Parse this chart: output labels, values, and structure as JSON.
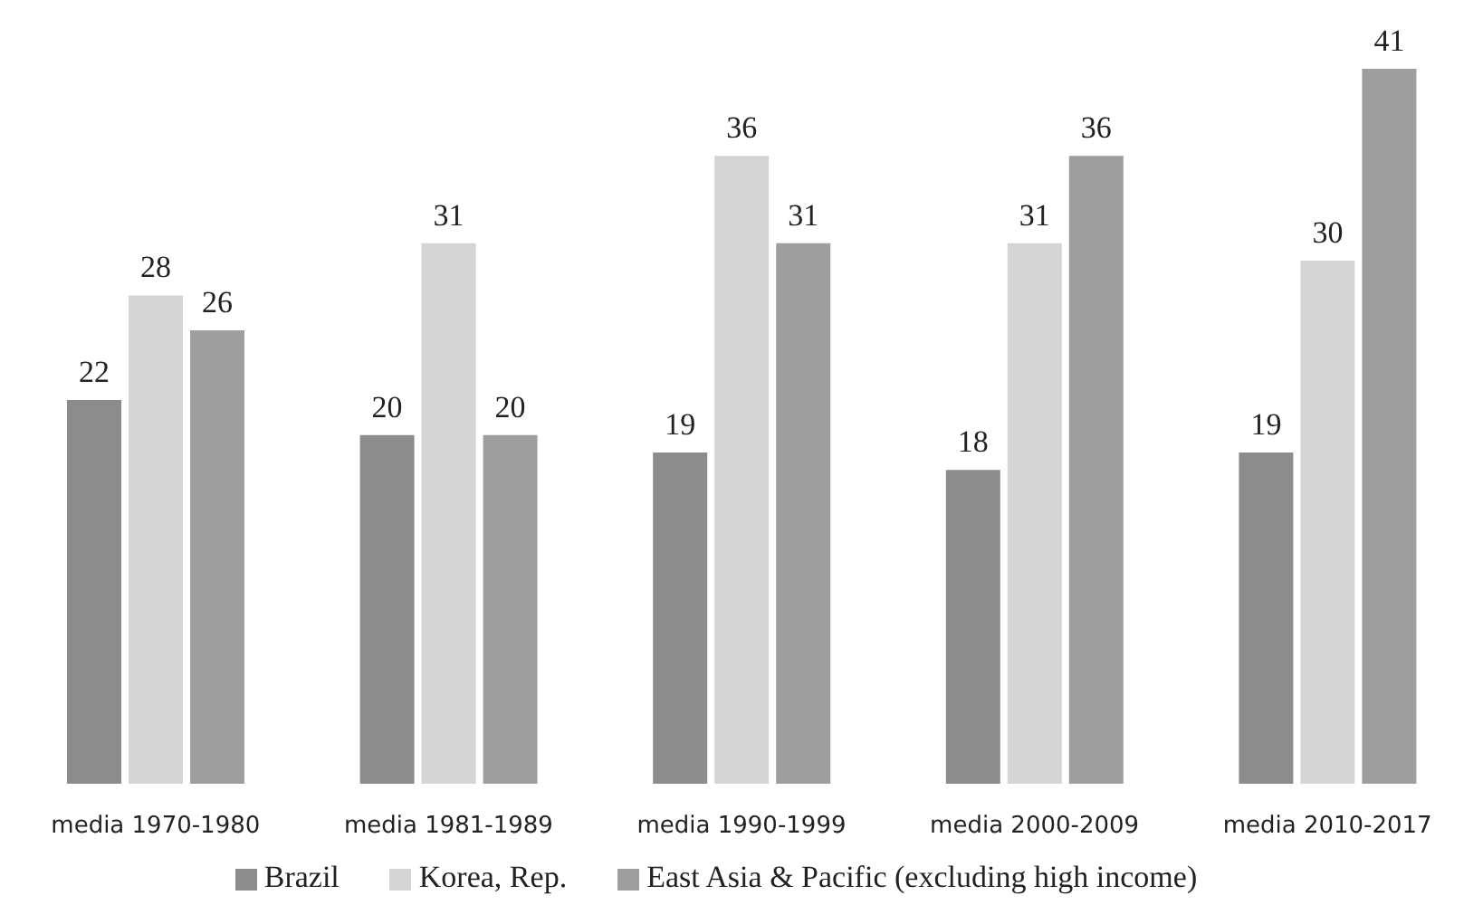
{
  "chart_data": {
    "type": "bar",
    "categories": [
      "media 1970-1980",
      "media 1981-1989",
      "media 1990-1999",
      "media 2000-2009",
      "media 2010-2017"
    ],
    "series": [
      {
        "name": "Brazil",
        "color": "#8c8c8c",
        "values": [
          22,
          20,
          19,
          18,
          19
        ]
      },
      {
        "name": "Korea, Rep.",
        "color": "#d4d4d4",
        "values": [
          28,
          31,
          36,
          31,
          30
        ]
      },
      {
        "name": "East Asia & Pacific (excluding high income)",
        "color": "#9e9e9e",
        "values": [
          26,
          20,
          31,
          36,
          41
        ]
      }
    ],
    "data_labels": true,
    "legend": "bottom",
    "grid": false
  }
}
